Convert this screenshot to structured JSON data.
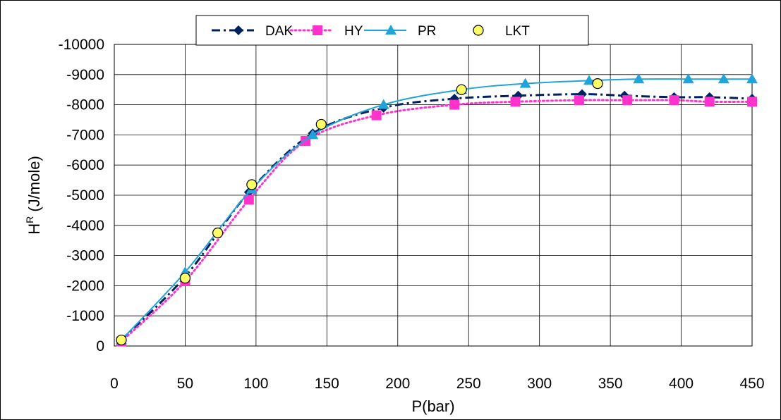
{
  "chart_data": {
    "type": "line",
    "xlabel": "P(bar)",
    "ylabel_main": "H",
    "ylabel_sup": "R",
    "ylabel_rest": " (J/mole)",
    "xlim": [
      0,
      450
    ],
    "ylim": [
      0,
      -10000
    ],
    "x_ticks": [
      "0",
      "50",
      "100",
      "150",
      "200",
      "250",
      "300",
      "350",
      "400",
      "450"
    ],
    "y_ticks": [
      "0",
      "-1000",
      "-2000",
      "-3000",
      "-4000",
      "-5000",
      "-6000",
      "-7000",
      "-8000",
      "-9000",
      "-10000"
    ],
    "grid": true,
    "legend_position": "top",
    "series": [
      {
        "name": "DAK",
        "color": "#002060",
        "line_style": "dash-dot",
        "marker": "diamond",
        "x": [
          5,
          50,
          95,
          140,
          190,
          240,
          285,
          330,
          360,
          395,
          420,
          450
        ],
        "y": [
          -200,
          -2300,
          -5100,
          -7050,
          -7900,
          -8200,
          -8300,
          -8350,
          -8300,
          -8250,
          -8250,
          -8200
        ]
      },
      {
        "name": "HY",
        "color": "#FF33CC",
        "line_style": "dotted",
        "marker": "square",
        "x": [
          5,
          50,
          95,
          135,
          185,
          240,
          283,
          328,
          362,
          395,
          420,
          450
        ],
        "y": [
          -150,
          -2150,
          -4850,
          -6800,
          -7650,
          -8000,
          -8100,
          -8150,
          -8150,
          -8150,
          -8100,
          -8100
        ]
      },
      {
        "name": "PR",
        "color": "#1FA3D8",
        "line_style": "solid",
        "marker": "triangle",
        "x": [
          5,
          50,
          97,
          140,
          190,
          245,
          290,
          335,
          370,
          405,
          430,
          450
        ],
        "y": [
          -200,
          -2450,
          -5200,
          -7000,
          -8000,
          -8500,
          -8700,
          -8800,
          -8850,
          -8850,
          -8850,
          -8850
        ]
      },
      {
        "name": "LKT",
        "color": "#000000",
        "fill": "#FFFF66",
        "line_style": "none",
        "marker": "circle",
        "x": [
          5,
          50,
          73,
          97,
          146,
          245,
          341
        ],
        "y": [
          -200,
          -2250,
          -3750,
          -5350,
          -7350,
          -8500,
          -8700
        ]
      }
    ]
  }
}
